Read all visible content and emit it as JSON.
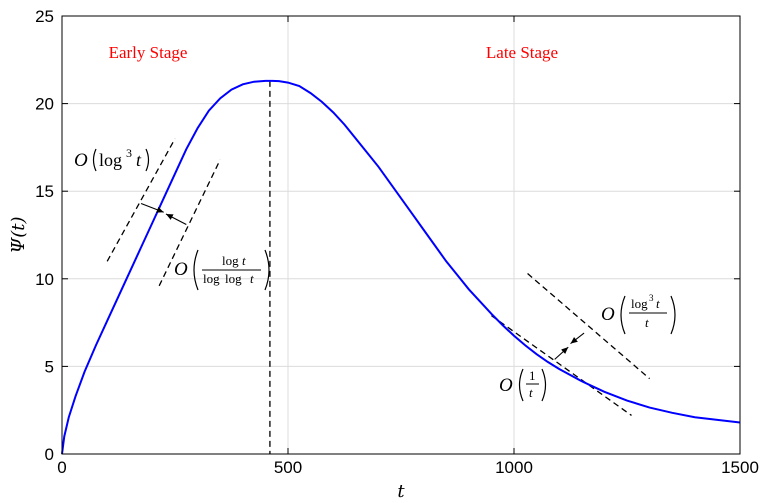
{
  "chart_data": {
    "type": "line",
    "xlabel": "t",
    "ylabel": "Ψ(t)",
    "xlim": [
      0,
      1500
    ],
    "ylim": [
      0,
      25
    ],
    "xticks": [
      0,
      500,
      1000,
      1500
    ],
    "yticks": [
      0,
      5,
      10,
      15,
      20,
      25
    ],
    "grid": true,
    "series": [
      {
        "color": "#0000ff",
        "x": [
          0,
          5,
          15,
          30,
          50,
          75,
          100,
          125,
          150,
          175,
          200,
          225,
          250,
          275,
          300,
          325,
          350,
          375,
          400,
          425,
          450,
          465,
          480,
          500,
          525,
          550,
          575,
          600,
          625,
          650,
          675,
          700,
          725,
          750,
          775,
          800,
          825,
          850,
          875,
          900,
          925,
          950,
          975,
          1000,
          1025,
          1050,
          1075,
          1100,
          1125,
          1150,
          1175,
          1200,
          1250,
          1300,
          1350,
          1400,
          1450,
          1500
        ],
        "y": [
          0,
          1.0,
          2.1,
          3.3,
          4.7,
          6.2,
          7.6,
          9.0,
          10.4,
          11.8,
          13.2,
          14.6,
          16.0,
          17.4,
          18.6,
          19.6,
          20.3,
          20.8,
          21.1,
          21.25,
          21.3,
          21.3,
          21.28,
          21.2,
          21.0,
          20.6,
          20.1,
          19.5,
          18.8,
          18.0,
          17.2,
          16.4,
          15.5,
          14.6,
          13.7,
          12.8,
          11.9,
          11.0,
          10.2,
          9.4,
          8.7,
          8.0,
          7.35,
          6.75,
          6.2,
          5.7,
          5.25,
          4.85,
          4.5,
          4.15,
          3.85,
          3.55,
          3.05,
          2.65,
          2.35,
          2.1,
          1.95,
          1.8
        ]
      }
    ],
    "vline": {
      "x": 460,
      "y_top": 21.3,
      "style": "dashed",
      "color": "#000000"
    },
    "reference_lines": [
      {
        "style": "dashed",
        "color": "#000000",
        "x": [
          100,
          250
        ],
        "y": [
          11.0,
          18.0
        ]
      },
      {
        "style": "dashed",
        "color": "#000000",
        "x": [
          215,
          350
        ],
        "y": [
          9.6,
          16.8
        ]
      },
      {
        "style": "dashed",
        "color": "#000000",
        "x": [
          950,
          1260
        ],
        "y": [
          7.9,
          2.2
        ]
      },
      {
        "style": "dashed",
        "color": "#000000",
        "x": [
          1030,
          1300
        ],
        "y": [
          10.3,
          4.3
        ]
      }
    ],
    "arrows": [
      {
        "color": "#000000",
        "from": [
          175,
          14.3
        ],
        "to": [
          225,
          13.8
        ]
      },
      {
        "color": "#000000",
        "from": [
          275,
          13.1
        ],
        "to": [
          230,
          13.7
        ]
      },
      {
        "color": "#000000",
        "from": [
          1090,
          5.4
        ],
        "to": [
          1120,
          6.1
        ]
      },
      {
        "color": "#000000",
        "from": [
          1155,
          6.9
        ],
        "to": [
          1125,
          6.3
        ]
      }
    ],
    "annotations": {
      "early_stage": {
        "text": "Early Stage",
        "color": "#ff0000"
      },
      "late_stage": {
        "text": "Late Stage",
        "color": "#ff0000"
      },
      "log3": {
        "O": "O",
        "log": "log",
        "sup": "3",
        "t": "t"
      },
      "loglog": {
        "O": "O",
        "num_log": "log",
        "num_t": "t",
        "den_log1": "log",
        "den_log2": "log",
        "den_t": "t"
      },
      "inv_t": {
        "O": "O",
        "num": "1",
        "den": "t"
      },
      "log3_over_t": {
        "O": "O",
        "num_log": "log",
        "num_sup": "3",
        "num_t": "t",
        "den": "t"
      }
    }
  }
}
